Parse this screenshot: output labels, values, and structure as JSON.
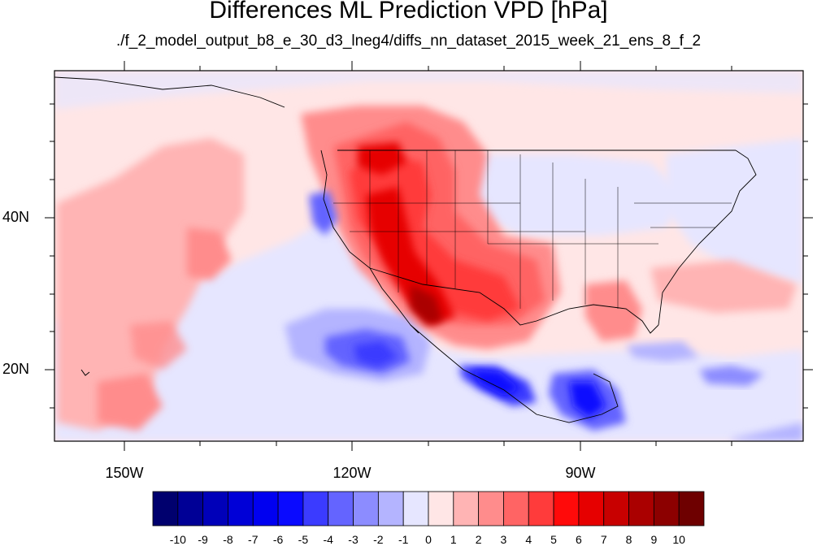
{
  "title": "Differences ML Prediction VPD [hPa]",
  "subtitle": "./f_2_model_output_b8_e_30_d3_lneg4/diffs_nn_dataset_2015_week_21_ens_8_f_2",
  "lat_labels": [
    "40N",
    "20N"
  ],
  "lon_labels": [
    "150W",
    "120W",
    "90W"
  ],
  "colorbar": {
    "labels": [
      "-10",
      "-9",
      "-8",
      "-7",
      "-6",
      "-5",
      "-4",
      "-3",
      "-2",
      "-1",
      "0",
      "1",
      "2",
      "3",
      "4",
      "5",
      "6",
      "7",
      "8",
      "9",
      "10"
    ],
    "colors": [
      "#00006e",
      "#000096",
      "#0000b9",
      "#0000d7",
      "#0000f0",
      "#0a0aff",
      "#3b3bff",
      "#6464ff",
      "#8c8cff",
      "#b4b4ff",
      "#e6e6ff",
      "#ffe6e6",
      "#ffb4b4",
      "#ff8c8c",
      "#ff6464",
      "#ff3b3b",
      "#ff0a0a",
      "#e60000",
      "#c80000",
      "#aa0000",
      "#8c0000",
      "#6e0000"
    ]
  },
  "map_extent": {
    "lon_min": -160,
    "lon_max": -62,
    "lat_min": 11,
    "lat_max": 60
  }
}
